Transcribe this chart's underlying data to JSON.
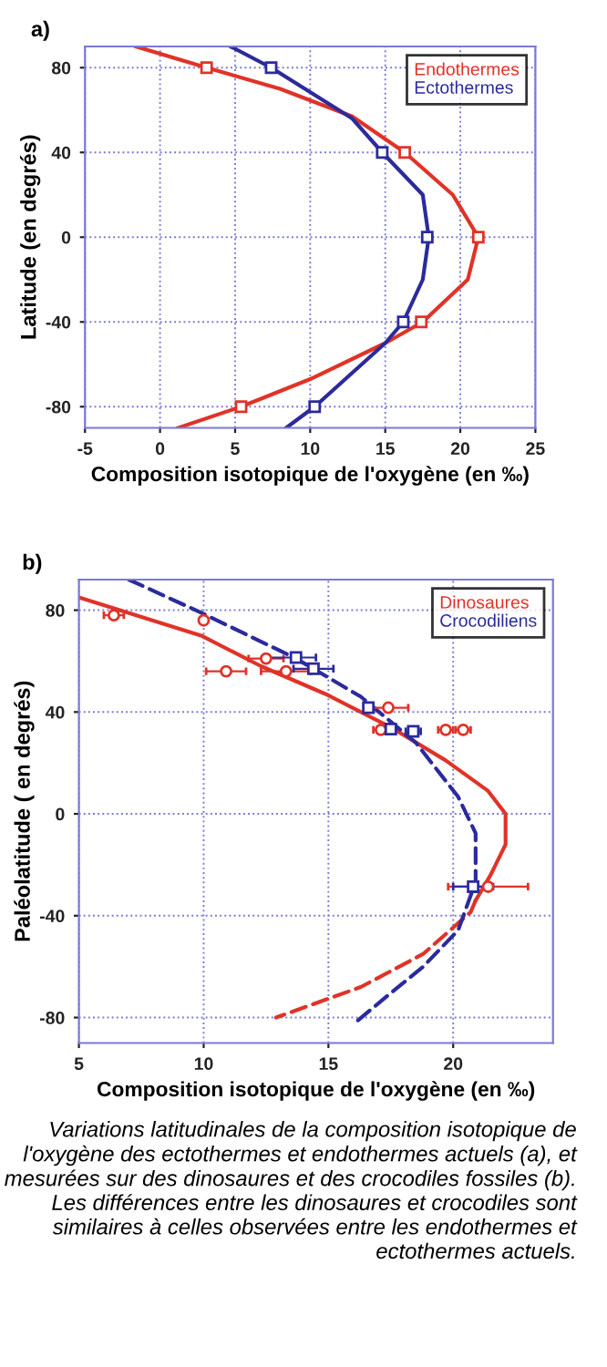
{
  "chart_data": [
    {
      "type": "line",
      "title": "a)",
      "xlabel": "Composition isotopique de l'oxygène (en ‰)",
      "ylabel": "Latitude (en degrés)",
      "xlim": [
        -5,
        25
      ],
      "xticks": [
        -5,
        0,
        5,
        10,
        15,
        20,
        25
      ],
      "ylim": [
        -90,
        90
      ],
      "yticks": [
        -80,
        -40,
        0,
        40,
        80
      ],
      "grid": true,
      "legend": "top right",
      "series": [
        {
          "name": "Endothermes",
          "color": "#e03328",
          "x": [
            -1.6,
            3.1,
            8,
            12.8,
            16.3,
            19.5,
            21.2,
            20.5,
            17.5,
            15,
            10,
            5.4,
            1.2
          ],
          "values": [
            90,
            80,
            70,
            57,
            40,
            20,
            0,
            -20,
            -40,
            -50,
            -67,
            -80,
            -90
          ]
        },
        {
          "name": "Ectothermes",
          "color": "#2b2b9c",
          "x": [
            4.7,
            7.4,
            12.8,
            14.8,
            17.5,
            17.9,
            17.5,
            16.2,
            15,
            10.3,
            8.4
          ],
          "values": [
            90,
            80,
            56,
            40,
            20,
            0,
            -20,
            -40,
            -50,
            -80,
            -90
          ]
        },
        {
          "color": "#e03328",
          "type": "scatter",
          "marker": "square",
          "x": [
            3.1,
            16.3,
            21.2,
            17.4,
            5.4
          ],
          "values": [
            80,
            40,
            0,
            -40,
            -80
          ]
        },
        {
          "color": "#2b2b9c",
          "type": "scatter",
          "marker": "square",
          "x": [
            7.4,
            14.8,
            17.8,
            16.2,
            10.3
          ],
          "values": [
            80,
            40,
            0,
            -40,
            -80
          ]
        }
      ]
    },
    {
      "type": "line",
      "title": "b)",
      "xlabel": "Composition isotopique de l'oxygène (en ‰)",
      "ylabel": "Paléolatitude ( en degrés)",
      "xlim": [
        5,
        24
      ],
      "xticks": [
        5,
        10,
        15,
        20
      ],
      "ylim": [
        -90,
        92
      ],
      "yticks": [
        -80,
        -40,
        0,
        40,
        80
      ],
      "grid": true,
      "legend": "top right",
      "annotations": [
        "Variations latitudinales de la composition isotopique de l'oxygène des ectothermes et endothermes actuels (a), et mesurées sur des dinosaures et des crocodiles fossiles (b). Les différences entre les dinosaures et crocodiles sont similaires à celles observées entre les endothermes et ectothermes actuels."
      ],
      "series": [
        {
          "name": "Dinosaures",
          "color": "#e03328",
          "line_style": "solid",
          "x": [
            5,
            9.9,
            12.3,
            14.9,
            17.5,
            19.7,
            21.4,
            22.1,
            22.1,
            21.5,
            20.9
          ],
          "values": [
            85,
            70,
            58,
            47,
            34,
            21,
            9,
            0,
            -12,
            -24,
            -34
          ]
        },
        {
          "color": "#e03328",
          "line_style": "dashed",
          "x": [
            20.9,
            20.7,
            18.8,
            16.3,
            12.9
          ],
          "values": [
            -34,
            -38.6,
            -55,
            -68,
            -80
          ]
        },
        {
          "name": "Crocodiliens",
          "color": "#2b2b9c",
          "line_style": "dashed",
          "x": [
            7,
            9.9,
            13.7,
            16.3,
            18.5,
            20.2,
            20.9,
            20.9,
            20.2,
            18.8,
            17.3,
            16
          ],
          "values": [
            92,
            79,
            61,
            46,
            28,
            6.7,
            -7.6,
            -26.7,
            -45.7,
            -60,
            -72,
            -82.6
          ]
        },
        {
          "color": "#e03328",
          "type": "scatter",
          "marker": "circle",
          "x": [
            6.4,
            10,
            10.9,
            13.3,
            12.5,
            17.4,
            17.1,
            19.7,
            20.4,
            21.4
          ],
          "values": [
            78,
            76,
            56,
            56,
            61,
            41.7,
            33,
            33,
            33,
            -28.6
          ],
          "xerrors": [
            0.4,
            null,
            0.8,
            1.0,
            0.7,
            0.8,
            0.3,
            0.3,
            0.3,
            [
              19.8,
              23
            ]
          ]
        },
        {
          "color": "#2b2b9c",
          "type": "scatter",
          "marker": "square",
          "x": [
            13.7,
            14.4,
            16.6,
            17.5,
            18.4,
            20.8
          ],
          "values": [
            61.4,
            57,
            41.7,
            33.3,
            32.4,
            -28.6
          ],
          "xerrors": [
            [
              12.6,
              14.5
            ],
            0.8,
            null,
            null,
            0.3,
            0.8
          ]
        }
      ]
    }
  ]
}
